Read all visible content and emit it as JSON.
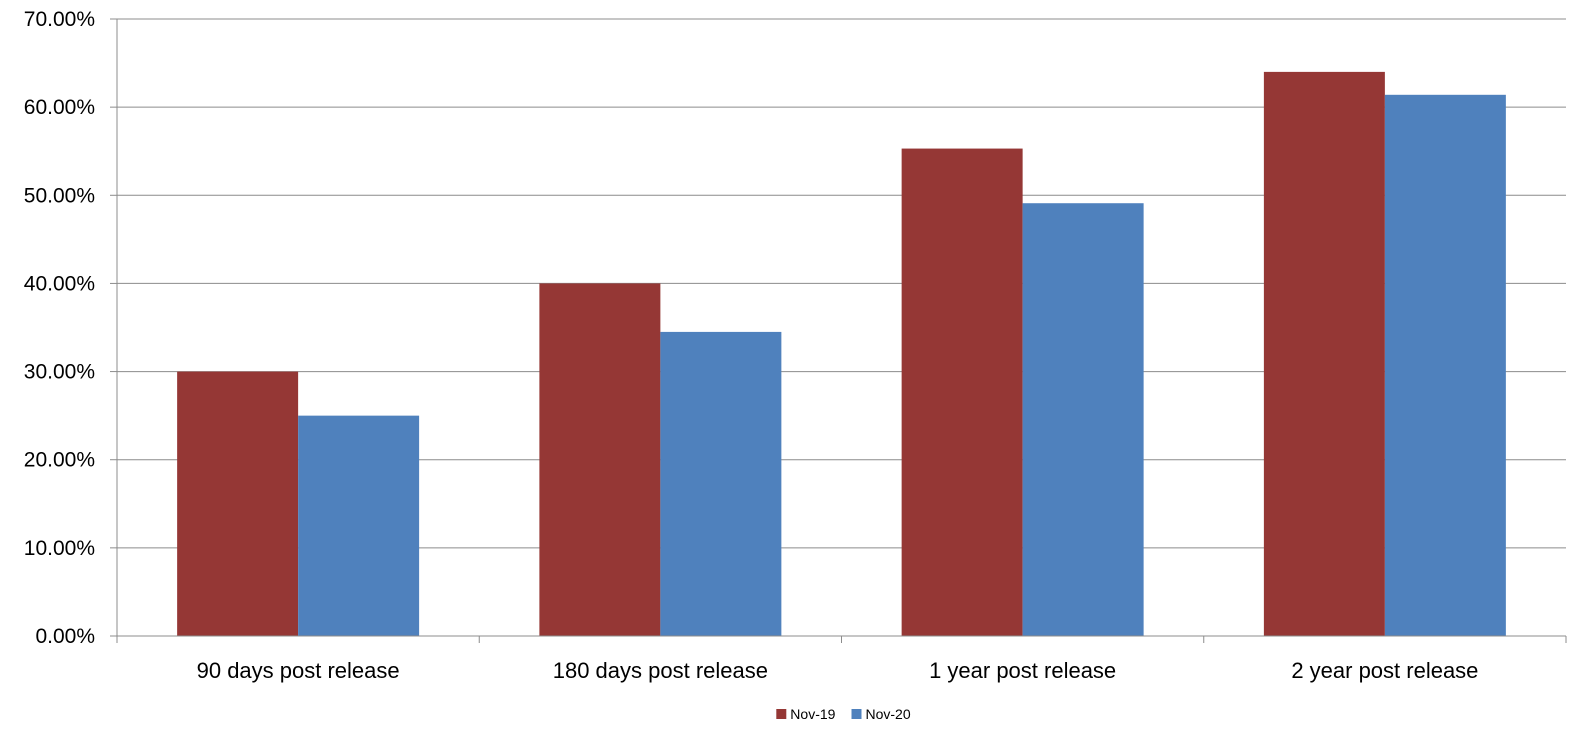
{
  "chart_data": {
    "type": "bar",
    "categories": [
      "90 days post release",
      "180 days post release",
      "1 year post release",
      "2 year post release"
    ],
    "series": [
      {
        "name": "Nov-19",
        "color": "#953735",
        "values": [
          30.0,
          40.0,
          55.3,
          64.0
        ]
      },
      {
        "name": "Nov-20",
        "color": "#4f81bd",
        "values": [
          25.0,
          34.5,
          49.1,
          61.4
        ]
      }
    ],
    "yticks": [
      "0.00%",
      "10.00%",
      "20.00%",
      "30.00%",
      "40.00%",
      "50.00%",
      "60.00%",
      "70.00%"
    ],
    "ylim": [
      0,
      70
    ],
    "grid": true,
    "legend": "bottom-center"
  }
}
